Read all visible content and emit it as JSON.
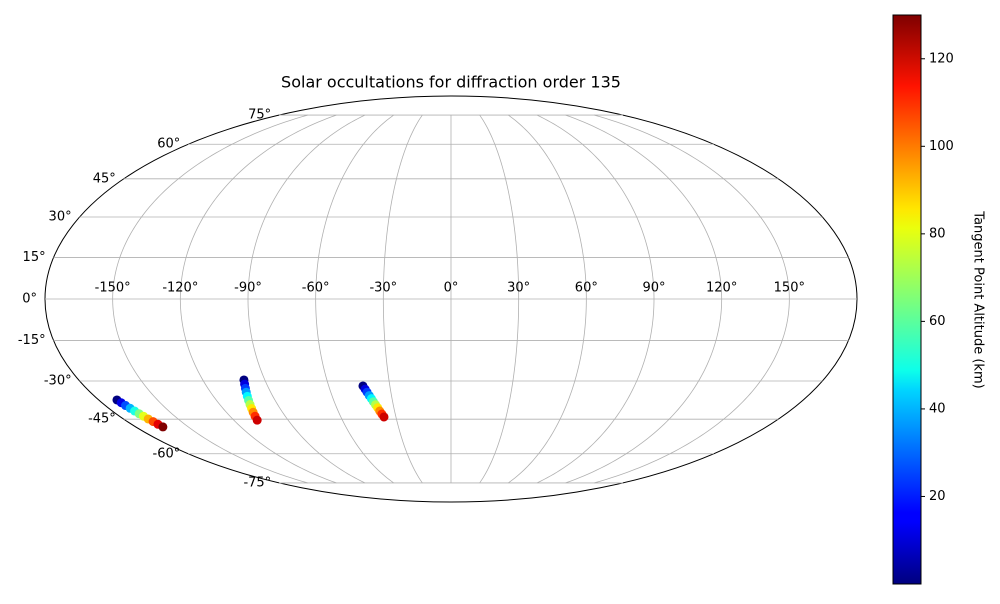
{
  "chart_data": {
    "type": "scatter",
    "projection": "mollweide",
    "title": "Solar occultations for diffraction order 135",
    "xlim": [
      -180,
      180
    ],
    "ylim": [
      -90,
      90
    ],
    "xticks": [
      {
        "value": -150,
        "label": "-150°"
      },
      {
        "value": -120,
        "label": "-120°"
      },
      {
        "value": -90,
        "label": "-90°"
      },
      {
        "value": -60,
        "label": "-60°"
      },
      {
        "value": -30,
        "label": "-30°"
      },
      {
        "value": 0,
        "label": "0°"
      },
      {
        "value": 30,
        "label": "30°"
      },
      {
        "value": 60,
        "label": "60°"
      },
      {
        "value": 90,
        "label": "90°"
      },
      {
        "value": 120,
        "label": "120°"
      },
      {
        "value": 150,
        "label": "150°"
      }
    ],
    "yticks": [
      {
        "value": -75,
        "label": "-75°"
      },
      {
        "value": -60,
        "label": "-60°"
      },
      {
        "value": -45,
        "label": "-45°"
      },
      {
        "value": -30,
        "label": "-30°"
      },
      {
        "value": -15,
        "label": "-15°"
      },
      {
        "value": 0,
        "label": "0°"
      },
      {
        "value": 15,
        "label": "15°"
      },
      {
        "value": 30,
        "label": "30°"
      },
      {
        "value": 45,
        "label": "45°"
      },
      {
        "value": 60,
        "label": "60°"
      },
      {
        "value": 75,
        "label": "75°"
      }
    ],
    "grid": true,
    "colormap": "jet",
    "colorbar": {
      "label": "Tangent Point Altitude (km)",
      "lim": [
        0,
        130
      ],
      "ticks": [
        20,
        40,
        60,
        80,
        100,
        120
      ]
    },
    "series": [
      {
        "lon": [
          -170.7,
          -170.1,
          -169.5,
          -168.8,
          -168.2,
          -167.6,
          -167.0,
          -166.4,
          -165.7,
          -165.1,
          -164.5
        ],
        "lat": [
          -37.3,
          -38.4,
          -39.5,
          -40.6,
          -41.7,
          -42.8,
          -43.8,
          -44.9,
          -46.0,
          -47.1,
          -48.2
        ],
        "altitude": [
          0,
          13,
          26,
          39,
          52,
          65,
          78,
          91,
          104,
          117,
          130
        ]
      },
      {
        "lon": [
          -100.1,
          -100.8,
          -101.5,
          -102.2,
          -102.9,
          -103.6,
          -104.3,
          -105.0,
          -105.7,
          -106.4,
          -107.1
        ],
        "lat": [
          -29.6,
          -31.2,
          -32.8,
          -34.3,
          -35.9,
          -37.5,
          -39.1,
          -40.7,
          -42.2,
          -43.8,
          -45.4
        ],
        "altitude": [
          0,
          12,
          24,
          36,
          48,
          60,
          72,
          84,
          96,
          108,
          120
        ]
      },
      {
        "lon": [
          -43.2,
          -42.5,
          -41.9,
          -41.2,
          -40.5,
          -39.9,
          -39.2,
          -38.5,
          -37.9,
          -37.2,
          -36.5
        ],
        "lat": [
          -31.9,
          -33.1,
          -34.3,
          -35.6,
          -36.8,
          -38.0,
          -39.2,
          -40.4,
          -41.7,
          -42.9,
          -44.1
        ],
        "altitude": [
          0,
          12,
          24,
          36,
          48,
          60,
          72,
          84,
          96,
          108,
          120
        ]
      }
    ]
  }
}
